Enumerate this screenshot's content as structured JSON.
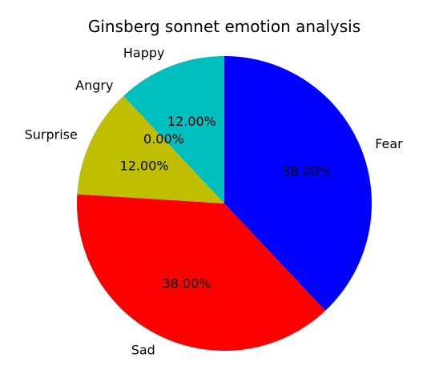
{
  "chart_data": {
    "type": "pie",
    "title": "Ginsberg sonnet emotion analysis",
    "start_angle_deg": 90,
    "direction": "clockwise",
    "slices": [
      {
        "label": "Fear",
        "value": 38.0,
        "pct_text": "38.00%",
        "color": "#0000ff"
      },
      {
        "label": "Sad",
        "value": 38.0,
        "pct_text": "38.00%",
        "color": "#ff0000"
      },
      {
        "label": "Surprise",
        "value": 12.0,
        "pct_text": "12.00%",
        "color": "#bfbf00"
      },
      {
        "label": "Angry",
        "value": 0.0,
        "pct_text": "0.00%",
        "color": "#00bf00"
      },
      {
        "label": "Happy",
        "value": 12.0,
        "pct_text": "12.00%",
        "color": "#00bfbf"
      }
    ]
  }
}
